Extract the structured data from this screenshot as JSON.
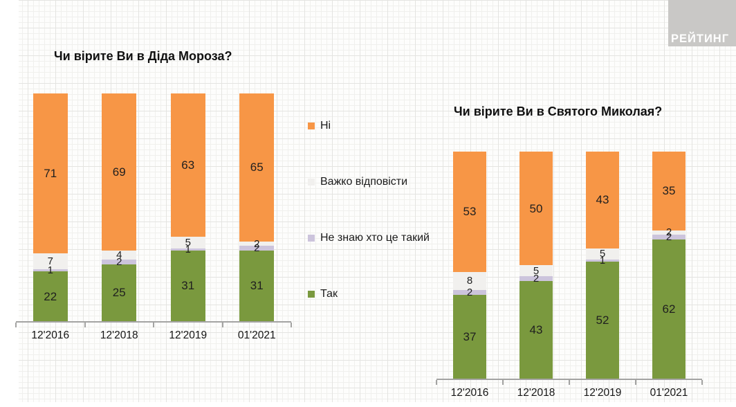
{
  "logo": {
    "text": "РЕЙТИНГ",
    "bg_color": "#c9c8c6",
    "text_color": "#ffffff"
  },
  "colors": {
    "no": "#f79646",
    "hard": "#f1f0ee",
    "dont_know": "#ccc4dc",
    "yes": "#7a993e"
  },
  "legend": {
    "items": [
      {
        "label": "Ні",
        "color_key": "no"
      },
      {
        "label": "Важко відповісти",
        "color_key": "hard"
      },
      {
        "label": "Не знаю хто це такий",
        "color_key": "dont_know"
      },
      {
        "label": "Так",
        "color_key": "yes"
      }
    ]
  },
  "chart_data": [
    {
      "type": "bar",
      "stacked": true,
      "title": "Чи вірите Ви в Діда Мороза?",
      "categories": [
        "12'2016",
        "12'2018",
        "12'2019",
        "01'2021"
      ],
      "series": [
        {
          "name": "Так",
          "color_key": "yes",
          "values": [
            22,
            25,
            31,
            31
          ]
        },
        {
          "name": "Не знаю хто це такий",
          "color_key": "dont_know",
          "values": [
            1,
            2,
            1,
            2
          ]
        },
        {
          "name": "Важко відповісти",
          "color_key": "hard",
          "values": [
            7,
            4,
            5,
            2
          ]
        },
        {
          "name": "Ні",
          "color_key": "no",
          "values": [
            71,
            69,
            63,
            65
          ]
        }
      ],
      "value_labels": "inside",
      "ylim": [
        0,
        100
      ],
      "grid": false,
      "legend_position": "right-of-chart"
    },
    {
      "type": "bar",
      "stacked": true,
      "title": "Чи вірите Ви в Святого Миколая?",
      "categories": [
        "12'2016",
        "12'2018",
        "12'2019",
        "01'2021"
      ],
      "series": [
        {
          "name": "Так",
          "color_key": "yes",
          "values": [
            37,
            43,
            52,
            62
          ]
        },
        {
          "name": "Не знаю хто це такий",
          "color_key": "dont_know",
          "values": [
            2,
            2,
            1,
            2
          ]
        },
        {
          "name": "Важко відповісти",
          "color_key": "hard",
          "values": [
            8,
            5,
            5,
            2
          ]
        },
        {
          "name": "Ні",
          "color_key": "no",
          "values": [
            53,
            50,
            43,
            35
          ]
        }
      ],
      "value_labels": "inside",
      "ylim": [
        0,
        100
      ],
      "grid": false,
      "legend_position": "shared"
    }
  ]
}
